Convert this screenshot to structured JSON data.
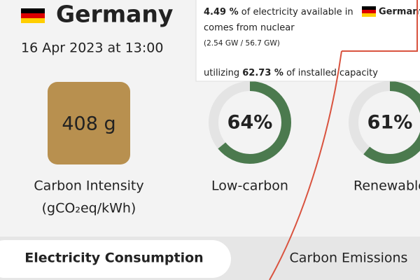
{
  "header": {
    "country": "Germany",
    "datetime": "16 Apr 2023 at 13:00"
  },
  "tooltip": {
    "share": "4.49 %",
    "text_1": "of electricity available in",
    "country": "Germany",
    "text_2": "comes from nuclear",
    "detail": "(2.54 GW / 56.7 GW)",
    "text_3": "utilizing",
    "capacity": "62.73 %",
    "text_4": "of installed capacity"
  },
  "carbon_intensity": {
    "value": "408 g",
    "label": "Carbon Intensity",
    "unit": "(gCO₂eq/kWh)"
  },
  "gauges": [
    {
      "value": 64,
      "label": "64%",
      "name": "Low-carbon"
    },
    {
      "value": 61,
      "label": "61%",
      "name": "Renewable"
    }
  ],
  "tabs": [
    "Electricity Consumption",
    "Carbon Emissions"
  ]
}
